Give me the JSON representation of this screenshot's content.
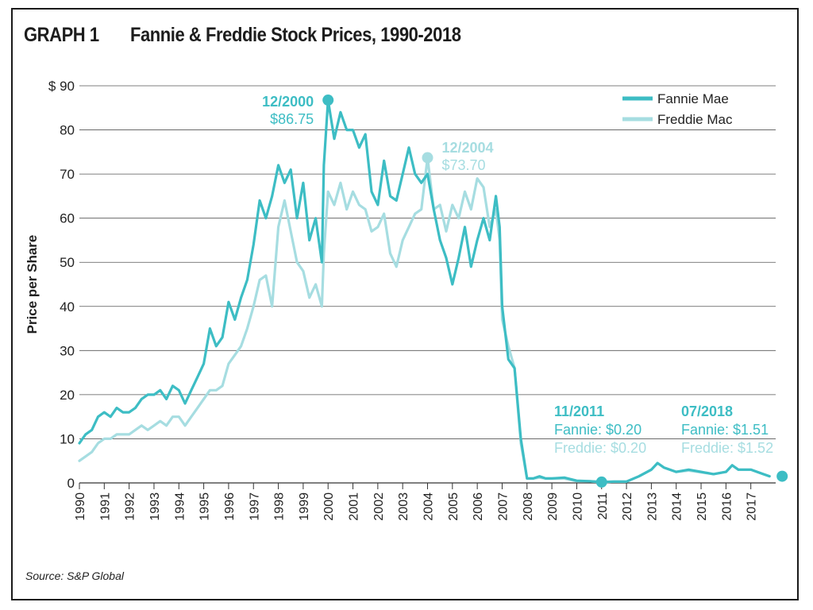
{
  "header": {
    "graph_label": "GRAPH 1",
    "title": "Fannie & Freddie Stock Prices, 1990-2018"
  },
  "footer": {
    "source": "Source: S&P Global"
  },
  "colors": {
    "fannie": "#3dbdc4",
    "freddie": "#a6dde1",
    "grid": "#555555",
    "text": "#222222",
    "annotation_dark": "#3dbdc4",
    "annotation_light": "#a6dde1"
  },
  "chart_data": {
    "type": "line",
    "title": "Fannie & Freddie Stock Prices, 1990-2018",
    "xlabel": "",
    "ylabel": "Price per Share",
    "xlim": [
      1990,
      2018
    ],
    "ylim": [
      0,
      90
    ],
    "y_ticks": [
      0,
      10,
      20,
      30,
      40,
      50,
      60,
      70,
      80,
      90
    ],
    "y_tick_labels": [
      "0",
      "10",
      "20",
      "30",
      "40",
      "50",
      "60",
      "70",
      "80",
      "$ 90"
    ],
    "x_ticks": [
      "1990",
      "1991",
      "1992",
      "1993",
      "1994",
      "1995",
      "1996",
      "1997",
      "1998",
      "1999",
      "2000",
      "2001",
      "2002",
      "2003",
      "2004",
      "2005",
      "2006",
      "2007",
      "2008",
      "2009",
      "2010",
      "2011",
      "2012",
      "2013",
      "2014",
      "2015",
      "2016",
      "2017"
    ],
    "grid": true,
    "legend_position": "top-right",
    "series": [
      {
        "name": "Fannie Mae",
        "color": "#3dbdc4",
        "points": [
          [
            1990,
            9
          ],
          [
            1990.25,
            11
          ],
          [
            1990.5,
            12
          ],
          [
            1990.75,
            15
          ],
          [
            1991,
            16
          ],
          [
            1991.25,
            15
          ],
          [
            1991.5,
            17
          ],
          [
            1991.75,
            16
          ],
          [
            1992,
            16
          ],
          [
            1992.25,
            17
          ],
          [
            1992.5,
            19
          ],
          [
            1992.75,
            20
          ],
          [
            1993,
            20
          ],
          [
            1993.25,
            21
          ],
          [
            1993.5,
            19
          ],
          [
            1993.75,
            22
          ],
          [
            1994,
            21
          ],
          [
            1994.25,
            18
          ],
          [
            1994.5,
            21
          ],
          [
            1994.75,
            24
          ],
          [
            1995,
            27
          ],
          [
            1995.25,
            35
          ],
          [
            1995.5,
            31
          ],
          [
            1995.75,
            33
          ],
          [
            1996,
            41
          ],
          [
            1996.25,
            37
          ],
          [
            1996.5,
            42
          ],
          [
            1996.75,
            46
          ],
          [
            1997,
            54
          ],
          [
            1997.25,
            64
          ],
          [
            1997.5,
            60
          ],
          [
            1997.75,
            65
          ],
          [
            1998,
            72
          ],
          [
            1998.25,
            68
          ],
          [
            1998.5,
            71
          ],
          [
            1998.75,
            60
          ],
          [
            1999,
            68
          ],
          [
            1999.25,
            55
          ],
          [
            1999.5,
            60
          ],
          [
            1999.75,
            50
          ],
          [
            1999.83,
            72
          ],
          [
            2000,
            86.75
          ],
          [
            2000.25,
            78
          ],
          [
            2000.5,
            84
          ],
          [
            2000.75,
            80
          ],
          [
            2001,
            80
          ],
          [
            2001.25,
            76
          ],
          [
            2001.5,
            79
          ],
          [
            2001.75,
            66
          ],
          [
            2002,
            63
          ],
          [
            2002.25,
            73
          ],
          [
            2002.5,
            65
          ],
          [
            2002.75,
            64
          ],
          [
            2003,
            70
          ],
          [
            2003.25,
            76
          ],
          [
            2003.5,
            70
          ],
          [
            2003.75,
            68
          ],
          [
            2004,
            70
          ],
          [
            2004.25,
            62
          ],
          [
            2004.5,
            55
          ],
          [
            2004.75,
            51
          ],
          [
            2005,
            45
          ],
          [
            2005.25,
            51
          ],
          [
            2005.5,
            58
          ],
          [
            2005.75,
            49
          ],
          [
            2006,
            55
          ],
          [
            2006.25,
            60
          ],
          [
            2006.5,
            55
          ],
          [
            2006.75,
            65
          ],
          [
            2006.9,
            58
          ],
          [
            2007,
            40
          ],
          [
            2007.25,
            28
          ],
          [
            2007.5,
            26
          ],
          [
            2007.75,
            10
          ],
          [
            2008,
            1
          ],
          [
            2008.25,
            1
          ],
          [
            2008.5,
            1.5
          ],
          [
            2008.75,
            1
          ],
          [
            2009,
            1
          ],
          [
            2009.5,
            1.2
          ],
          [
            2010,
            0.5
          ],
          [
            2010.5,
            0.4
          ],
          [
            2011,
            0.2
          ],
          [
            2011.5,
            0.3
          ],
          [
            2012,
            0.3
          ],
          [
            2012.5,
            1.5
          ],
          [
            2013,
            3
          ],
          [
            2013.25,
            4.5
          ],
          [
            2013.5,
            3.5
          ],
          [
            2014,
            2.5
          ],
          [
            2014.5,
            3
          ],
          [
            2015,
            2.5
          ],
          [
            2015.5,
            2
          ],
          [
            2016,
            2.5
          ],
          [
            2016.25,
            4
          ],
          [
            2016.5,
            3
          ],
          [
            2017,
            3
          ],
          [
            2017.5,
            2
          ],
          [
            2017.75,
            1.51
          ]
        ]
      },
      {
        "name": "Freddie Mac",
        "color": "#a6dde1",
        "points": [
          [
            1990,
            5
          ],
          [
            1990.25,
            6
          ],
          [
            1990.5,
            7
          ],
          [
            1990.75,
            9
          ],
          [
            1991,
            10
          ],
          [
            1991.25,
            10
          ],
          [
            1991.5,
            11
          ],
          [
            1991.75,
            11
          ],
          [
            1992,
            11
          ],
          [
            1992.25,
            12
          ],
          [
            1992.5,
            13
          ],
          [
            1992.75,
            12
          ],
          [
            1993,
            13
          ],
          [
            1993.25,
            14
          ],
          [
            1993.5,
            13
          ],
          [
            1993.75,
            15
          ],
          [
            1994,
            15
          ],
          [
            1994.25,
            13
          ],
          [
            1994.5,
            15
          ],
          [
            1994.75,
            17
          ],
          [
            1995,
            19
          ],
          [
            1995.25,
            21
          ],
          [
            1995.5,
            21
          ],
          [
            1995.75,
            22
          ],
          [
            1996,
            27
          ],
          [
            1996.25,
            29
          ],
          [
            1996.5,
            31
          ],
          [
            1996.75,
            35
          ],
          [
            1997,
            40
          ],
          [
            1997.25,
            46
          ],
          [
            1997.5,
            47
          ],
          [
            1997.75,
            40
          ],
          [
            1998,
            58
          ],
          [
            1998.25,
            64
          ],
          [
            1998.5,
            57
          ],
          [
            1998.75,
            50
          ],
          [
            1999,
            48
          ],
          [
            1999.25,
            42
          ],
          [
            1999.5,
            45
          ],
          [
            1999.75,
            40
          ],
          [
            1999.83,
            52
          ],
          [
            2000,
            66
          ],
          [
            2000.25,
            63
          ],
          [
            2000.5,
            68
          ],
          [
            2000.75,
            62
          ],
          [
            2001,
            66
          ],
          [
            2001.25,
            63
          ],
          [
            2001.5,
            62
          ],
          [
            2001.75,
            57
          ],
          [
            2002,
            58
          ],
          [
            2002.25,
            61
          ],
          [
            2002.5,
            52
          ],
          [
            2002.75,
            49
          ],
          [
            2003,
            55
          ],
          [
            2003.25,
            58
          ],
          [
            2003.5,
            61
          ],
          [
            2003.75,
            62
          ],
          [
            2004,
            73.7
          ],
          [
            2004.25,
            62
          ],
          [
            2004.5,
            63
          ],
          [
            2004.75,
            57
          ],
          [
            2005,
            63
          ],
          [
            2005.25,
            60
          ],
          [
            2005.5,
            66
          ],
          [
            2005.75,
            62
          ],
          [
            2006,
            69
          ],
          [
            2006.25,
            67
          ],
          [
            2006.5,
            58
          ],
          [
            2006.75,
            62
          ],
          [
            2006.9,
            55
          ],
          [
            2007,
            37
          ],
          [
            2007.25,
            31
          ],
          [
            2007.5,
            26
          ],
          [
            2007.75,
            9
          ],
          [
            2008,
            1
          ],
          [
            2008.25,
            1
          ],
          [
            2008.5,
            1.2
          ],
          [
            2008.75,
            1
          ],
          [
            2009,
            1
          ],
          [
            2009.5,
            1
          ],
          [
            2010,
            0.4
          ],
          [
            2010.5,
            0.4
          ],
          [
            2011,
            0.2
          ],
          [
            2011.5,
            0.3
          ],
          [
            2012,
            0.3
          ],
          [
            2012.5,
            1.5
          ],
          [
            2013,
            3
          ],
          [
            2013.25,
            4.5
          ],
          [
            2013.5,
            3.5
          ],
          [
            2014,
            2.5
          ],
          [
            2014.5,
            2.8
          ],
          [
            2015,
            2.4
          ],
          [
            2015.5,
            2
          ],
          [
            2016,
            2.5
          ],
          [
            2016.25,
            4
          ],
          [
            2016.5,
            3
          ],
          [
            2017,
            3
          ],
          [
            2017.5,
            2
          ],
          [
            2017.75,
            1.52
          ]
        ]
      }
    ],
    "annotations": [
      {
        "x": 2000,
        "y": 86.75,
        "label_date": "12/2000",
        "label_value": "$86.75",
        "series": "Fannie Mae",
        "placement": "left"
      },
      {
        "x": 2004,
        "y": 73.7,
        "label_date": "12/2004",
        "label_value": "$73.70",
        "series": "Freddie Mac",
        "placement": "right"
      },
      {
        "x": 2011,
        "y": 0.2,
        "label_date": "11/2011",
        "label_fannie": "Fannie: $0.20",
        "label_freddie": "Freddie: $0.20",
        "series": "Fannie Mae",
        "placement": "above"
      },
      {
        "x": 2017.75,
        "y": 1.51,
        "label_date": "07/2018",
        "label_fannie": "Fannie: $1.51",
        "label_freddie": "Freddie: $1.52",
        "series": "Fannie Mae",
        "placement": "above"
      }
    ]
  }
}
